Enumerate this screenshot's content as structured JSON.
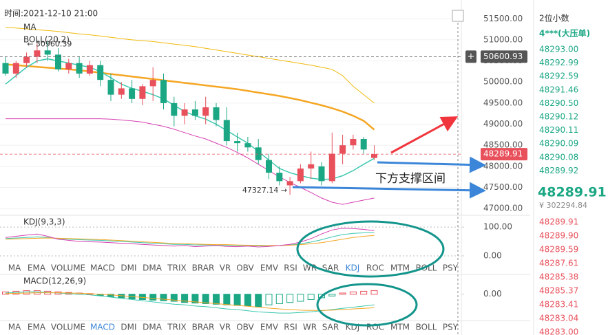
{
  "chart_data": [
    {
      "type": "candlestick",
      "time_label": "时间:2021-12-10 21:00",
      "indicator_labels": [
        "MA",
        "BOLL(20,2)"
      ],
      "categories": [
        null,
        null,
        null,
        null,
        null,
        null,
        null,
        null,
        null,
        null,
        null,
        null,
        null,
        null,
        null,
        null,
        null,
        null,
        null,
        null,
        null,
        null,
        null,
        null,
        null,
        null,
        null,
        null,
        null,
        null,
        null,
        null,
        null,
        null,
        null,
        null
      ],
      "open": [
        50450,
        50200,
        50450,
        50600,
        50750,
        50650,
        50300,
        50450,
        50200,
        50400,
        50050,
        49700,
        49850,
        49600,
        49900,
        50050,
        49500,
        49200,
        49350,
        49200,
        49400,
        49100,
        48600,
        48550,
        48450,
        48150,
        47850,
        47550,
        47650,
        47950,
        48000,
        47650,
        48300,
        48500,
        48650,
        48200
      ],
      "high": [
        50600,
        50500,
        50700,
        50900,
        50960.39,
        50800,
        50550,
        50600,
        50500,
        50500,
        50200,
        50000,
        50050,
        49950,
        50350,
        50200,
        49650,
        49500,
        49550,
        49650,
        49500,
        49400,
        48800,
        48700,
        48650,
        48300,
        48000,
        47750,
        48050,
        48350,
        48100,
        48800,
        48750,
        48750,
        48700,
        48500
      ],
      "low": [
        50150,
        50100,
        50350,
        50450,
        50500,
        50250,
        50200,
        50100,
        50150,
        49900,
        49550,
        49600,
        49500,
        49450,
        49550,
        49350,
        48950,
        49000,
        49100,
        49000,
        48950,
        48500,
        48350,
        48350,
        48050,
        47700,
        47550,
        47327.14,
        47600,
        47700,
        47550,
        47600,
        48050,
        48400,
        48300,
        48150
      ],
      "close": [
        50200,
        50450,
        50600,
        50750,
        50650,
        50300,
        50450,
        50200,
        50400,
        50050,
        49700,
        49850,
        49600,
        49900,
        50050,
        49500,
        49200,
        49350,
        49200,
        49400,
        49100,
        48600,
        48550,
        48450,
        48150,
        47850,
        47650,
        47650,
        47950,
        48050,
        47650,
        48300,
        48500,
        48650,
        48400,
        48289.91
      ],
      "up_color": "#e8505b",
      "down_color": "#1ba784",
      "overlays": [
        {
          "color": "#f0b90b",
          "width": 1,
          "values": [
            51300,
            51280,
            51260,
            51240,
            51220,
            51200,
            51170,
            51140,
            51120,
            51090,
            51060,
            51030,
            51000,
            50980,
            50960,
            50930,
            50900,
            50870,
            50840,
            50800,
            50760,
            50720,
            50680,
            50640,
            50600,
            50560,
            50520,
            50480,
            50440,
            50400,
            50350,
            50300,
            50150,
            49900,
            49700,
            49500
          ]
        },
        {
          "color": "#f5a623",
          "width": 2.5,
          "values": [
            50420,
            50400,
            50380,
            50360,
            50340,
            50320,
            50300,
            50280,
            50250,
            50220,
            50190,
            50160,
            50130,
            50100,
            50070,
            50040,
            50010,
            49980,
            49950,
            49920,
            49890,
            49860,
            49830,
            49790,
            49750,
            49710,
            49670,
            49620,
            49570,
            49510,
            49450,
            49380,
            49300,
            49200,
            49080,
            48870
          ]
        },
        {
          "color": "#3cc8b0",
          "width": 1.5,
          "values": [
            49950,
            50150,
            50350,
            50500,
            50550,
            50500,
            50450,
            50400,
            50350,
            50250,
            50100,
            49950,
            49850,
            49780,
            49700,
            49600,
            49450,
            49300,
            49200,
            49120,
            49000,
            48850,
            48700,
            48550,
            48350,
            48150,
            47950,
            47850,
            47780,
            47720,
            47690,
            47700,
            47780,
            47900,
            48050,
            48190
          ]
        },
        {
          "color": "#d63fb0",
          "width": 1,
          "values": [
            49130,
            49130,
            49130,
            49130,
            49130,
            49130,
            49130,
            49130,
            49130,
            49130,
            49120,
            49100,
            49080,
            49050,
            49000,
            48950,
            48880,
            48800,
            48720,
            48650,
            48550,
            48450,
            48330,
            48200,
            48050,
            47900,
            47750,
            47620,
            47500,
            47380,
            47250,
            47150,
            47100,
            47150,
            47200,
            47250
          ]
        }
      ],
      "ylim": [
        46840,
        51700
      ],
      "yticks": [
        {
          "value": 51500,
          "label": "51500.00"
        },
        {
          "value": 51000,
          "label": "51000.00"
        },
        {
          "value": 50500,
          "label": "50500.00"
        },
        {
          "value": 50000,
          "label": "50000.00"
        },
        {
          "value": 49500,
          "label": "49500.00"
        },
        {
          "value": 49000,
          "label": "49000.00"
        },
        {
          "value": 48500,
          "label": "48500.00"
        },
        {
          "value": 48000,
          "label": "48000.00"
        },
        {
          "value": 47500,
          "label": "47500.00"
        },
        {
          "value": 47000,
          "label": "47000.00"
        }
      ],
      "grid": true,
      "price_lines": [
        {
          "value": 50600.93,
          "label": "50600.93",
          "color": "#555555"
        },
        {
          "value": 48289.91,
          "label": "48289.91",
          "color": "#e8505b"
        }
      ],
      "high_marker": {
        "value": 50960.39,
        "label": "← 50960.39"
      },
      "low_marker": {
        "value": 47327.14,
        "label": "47327.14 →"
      },
      "annotation": "下方支撑区间"
    },
    {
      "type": "line",
      "title": "KDJ(9,3,3)",
      "categories": [
        null,
        null,
        null,
        null,
        null,
        null,
        null,
        null,
        null,
        null,
        null,
        null,
        null,
        null,
        null,
        null,
        null,
        null,
        null,
        null,
        null,
        null,
        null,
        null,
        null,
        null,
        null,
        null,
        null,
        null,
        null,
        null,
        null,
        null,
        null,
        null
      ],
      "series": [
        {
          "color": "#3cc8b0",
          "values": [
            60,
            62,
            64,
            66,
            64,
            60,
            58,
            56,
            55,
            54,
            52,
            50,
            48,
            46,
            44,
            42,
            40,
            40,
            38,
            38,
            38,
            37,
            36,
            36,
            35,
            35,
            36,
            38,
            42,
            48,
            56,
            66,
            74,
            78,
            80,
            80
          ]
        },
        {
          "color": "#f5a623",
          "values": [
            58,
            59,
            60,
            61,
            62,
            61,
            60,
            59,
            58,
            57,
            55,
            53,
            51,
            49,
            47,
            45,
            43,
            42,
            41,
            40,
            39,
            39,
            38,
            37,
            37,
            36,
            36,
            37,
            39,
            42,
            46,
            52,
            58,
            64,
            68,
            71
          ]
        },
        {
          "color": "#d63fb0",
          "values": [
            64,
            68,
            72,
            76,
            68,
            58,
            54,
            50,
            49,
            48,
            46,
            44,
            42,
            40,
            38,
            36,
            34,
            36,
            32,
            34,
            36,
            33,
            32,
            34,
            31,
            33,
            36,
            40,
            48,
            60,
            76,
            90,
            96,
            95,
            92,
            88
          ]
        }
      ],
      "ylim": [
        -24,
        129
      ],
      "yticks": [
        {
          "value": 100,
          "label": "100.00"
        },
        {
          "value": 0,
          "label": "0.00"
        }
      ]
    },
    {
      "type": "macd",
      "title": "MACD(12,26,9)",
      "categories": [
        null,
        null,
        null,
        null,
        null,
        null,
        null,
        null,
        null,
        null,
        null,
        null,
        null,
        null,
        null,
        null,
        null,
        null,
        null,
        null,
        null,
        null,
        null,
        null,
        null,
        null,
        null,
        null,
        null,
        null,
        null,
        null,
        null,
        null,
        null,
        null
      ],
      "histogram": [
        40,
        50,
        60,
        60,
        50,
        40,
        30,
        20,
        10,
        -20,
        -40,
        -60,
        -80,
        -90,
        -100,
        -110,
        -120,
        -140,
        -150,
        -160,
        -170,
        -180,
        -190,
        -200,
        -210,
        -180,
        -160,
        -140,
        -120,
        -90,
        -60,
        -30,
        20,
        40,
        50,
        60
      ],
      "series": [
        {
          "color": "#3cc8b0",
          "values": [
            20,
            30,
            40,
            40,
            30,
            20,
            10,
            0,
            -10,
            -30,
            -50,
            -70,
            -90,
            -110,
            -130,
            -150,
            -170,
            -180,
            -200,
            -210,
            -230,
            -250,
            -260,
            -280,
            -300,
            -310,
            -320,
            -320,
            -310,
            -300,
            -280,
            -260,
            -240,
            -220,
            -200,
            -180
          ]
        },
        {
          "color": "#f5a623",
          "values": [
            10,
            15,
            20,
            25,
            25,
            25,
            20,
            15,
            10,
            0,
            -10,
            -25,
            -40,
            -55,
            -70,
            -85,
            -100,
            -115,
            -130,
            -145,
            -160,
            -175,
            -190,
            -205,
            -220,
            -235,
            -250,
            -260,
            -270,
            -275,
            -275,
            -270,
            -260,
            -250,
            -240,
            -230
          ]
        }
      ],
      "up_color": "#e8505b",
      "down_color": "#1ba784",
      "ylim": [
        -400,
        300
      ],
      "yticks": [
        {
          "value": 0,
          "label": "0.00"
        }
      ]
    }
  ],
  "indicator_tabs": {
    "labels": [
      "MA",
      "EMA",
      "VOLUME",
      "MACD",
      "DMI",
      "DMA",
      "TRIX",
      "BRAR",
      "VR",
      "OBV",
      "EMV",
      "RSI",
      "WR",
      "SAR",
      "KDJ",
      "ROC",
      "MTM",
      "BOLL",
      "PSY"
    ],
    "active": [
      14,
      3
    ]
  },
  "sidebar": {
    "precision": "2位小数",
    "big_order": "4***(大压单)",
    "asks": [
      "48293.00",
      "48292.99",
      "48292.59",
      "48291.46",
      "48290.50",
      "48290.12",
      "48290.11",
      "48290.09",
      "48290.08",
      "48289.92"
    ],
    "last_price": "48289.91",
    "fiat": "¥ 302294.84",
    "bids": [
      "48289.91",
      "48289.90",
      "48289.59",
      "48287.61",
      "48285.38",
      "48285.37",
      "48283.41",
      "48283.04",
      "48283.00"
    ]
  }
}
